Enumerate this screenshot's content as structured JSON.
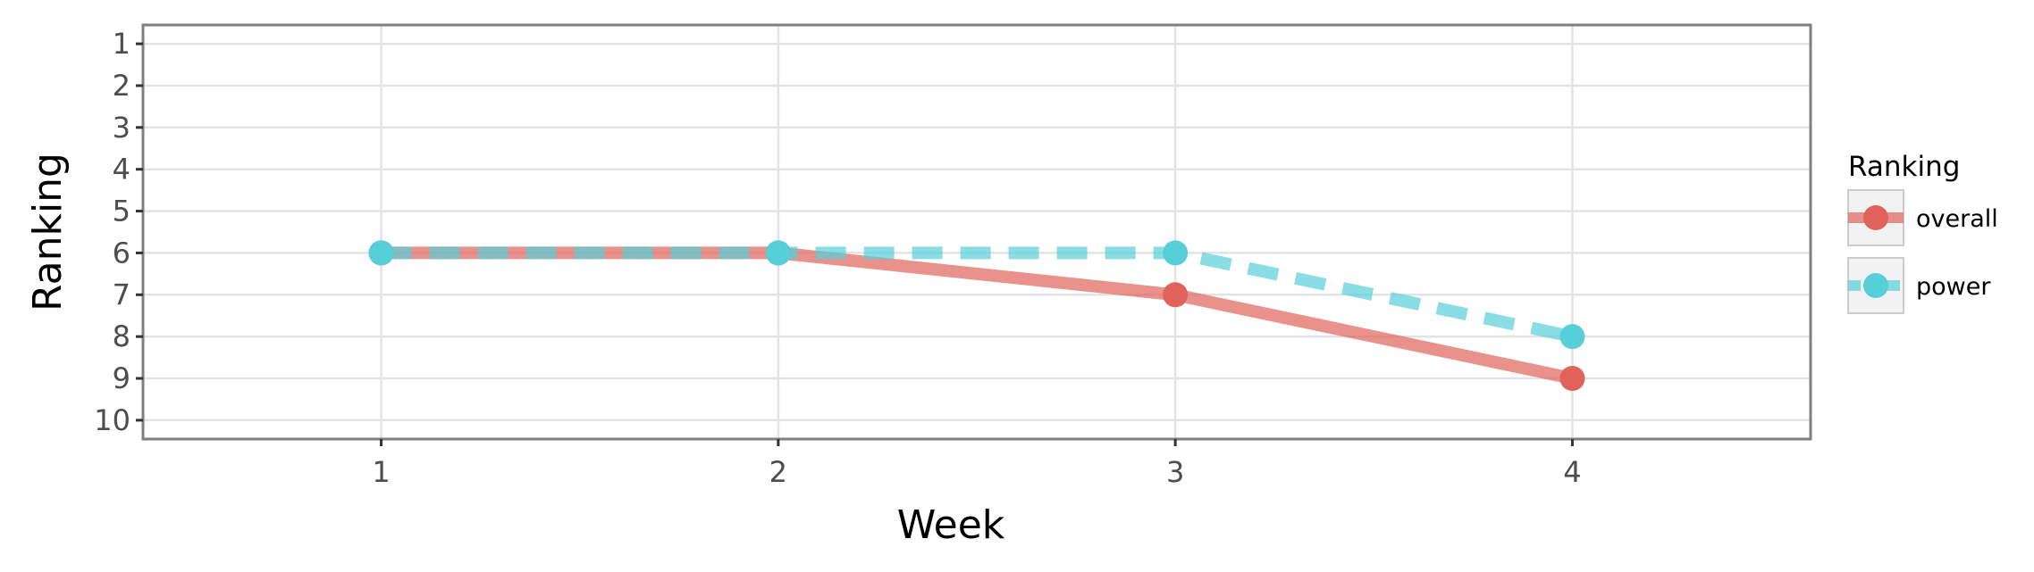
{
  "chart_data": {
    "type": "line",
    "xlabel": "Week",
    "ylabel": "Ranking",
    "x": [
      1,
      2,
      3,
      4
    ],
    "xlim": [
      0.4,
      4.6
    ],
    "ylim": [
      10.45,
      0.55
    ],
    "y_reversed": true,
    "x_ticks": [
      1,
      2,
      3,
      4
    ],
    "y_ticks": [
      1,
      2,
      3,
      4,
      5,
      6,
      7,
      8,
      9,
      10
    ],
    "grid": true,
    "legend": {
      "title": "Ranking",
      "position": "right"
    },
    "series": [
      {
        "name": "overall",
        "values": [
          6,
          6,
          7,
          9
        ],
        "color": "#e0625a",
        "linestyle": "solid"
      },
      {
        "name": "power",
        "values": [
          6,
          6,
          6,
          8
        ],
        "color": "#57cfd9",
        "linestyle": "dashed"
      }
    ]
  }
}
